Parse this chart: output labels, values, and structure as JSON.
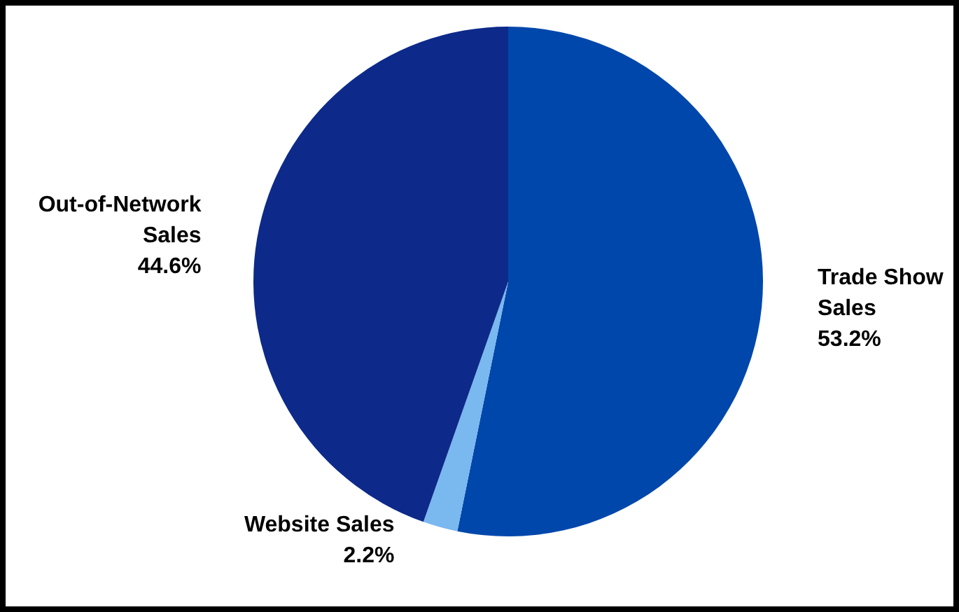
{
  "chart_data": {
    "type": "pie",
    "categories": [
      "Trade Show\nSales",
      "Website Sales",
      "Out-of-Network\nSales"
    ],
    "values": [
      53.2,
      2.2,
      44.6
    ],
    "value_labels": [
      "53.2%",
      "2.2%",
      "44.6%"
    ],
    "colors": [
      "#0047ab",
      "#7ab8f0",
      "#0d2a8a"
    ],
    "legend": false
  }
}
